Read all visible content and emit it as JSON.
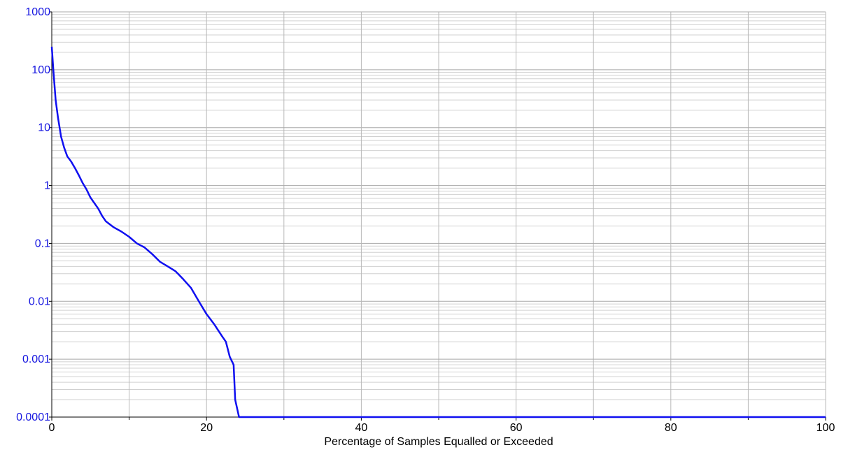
{
  "chart_data": {
    "type": "line",
    "log_y": true,
    "grid": true,
    "xlabel": "Percentage of Samples Equalled or Exceeded",
    "xlim": [
      0,
      100
    ],
    "xticks": [
      0,
      20,
      40,
      60,
      80,
      100
    ],
    "x_minor_ticks": [
      10,
      30,
      50,
      70,
      90
    ],
    "ylim": [
      0.0001,
      1000
    ],
    "yticks": [
      0.0001,
      0.001,
      0.01,
      0.1,
      1,
      10,
      100,
      1000
    ],
    "y_minor_ticks": [
      0.0002,
      0.0003,
      0.0004,
      0.0005,
      0.0006,
      0.0007,
      0.0008,
      0.0009,
      0.002,
      0.003,
      0.004,
      0.005,
      0.006,
      0.007,
      0.008,
      0.009,
      0.02,
      0.03,
      0.04,
      0.05,
      0.06,
      0.07,
      0.08,
      0.09,
      0.2,
      0.3,
      0.4,
      0.5,
      0.6,
      0.7,
      0.8,
      0.9,
      2,
      3,
      4,
      5,
      6,
      7,
      8,
      9,
      20,
      30,
      40,
      50,
      60,
      70,
      80,
      90,
      200,
      300,
      400,
      500,
      600,
      700,
      800,
      900
    ],
    "series": [
      {
        "color": "#1010f0",
        "x": [
          0,
          0.2,
          0.5,
          0.8,
          1.2,
          1.6,
          2,
          2.5,
          3,
          3.5,
          4,
          4.5,
          5,
          6,
          6.5,
          7,
          8,
          9,
          10,
          11,
          12,
          13,
          14,
          15,
          16,
          17,
          18,
          19,
          20,
          21,
          22,
          22.5,
          23,
          23.5,
          23.7,
          24.2,
          100
        ],
        "values": [
          250,
          100,
          30,
          15,
          7,
          4.5,
          3.2,
          2.6,
          2,
          1.5,
          1.1,
          0.85,
          0.62,
          0.4,
          0.3,
          0.24,
          0.19,
          0.16,
          0.13,
          0.1,
          0.085,
          0.065,
          0.048,
          0.04,
          0.033,
          0.024,
          0.017,
          0.01,
          0.006,
          0.004,
          0.0025,
          0.002,
          0.0011,
          0.0008,
          0.0002,
          0.0001,
          0.0001
        ]
      }
    ]
  }
}
